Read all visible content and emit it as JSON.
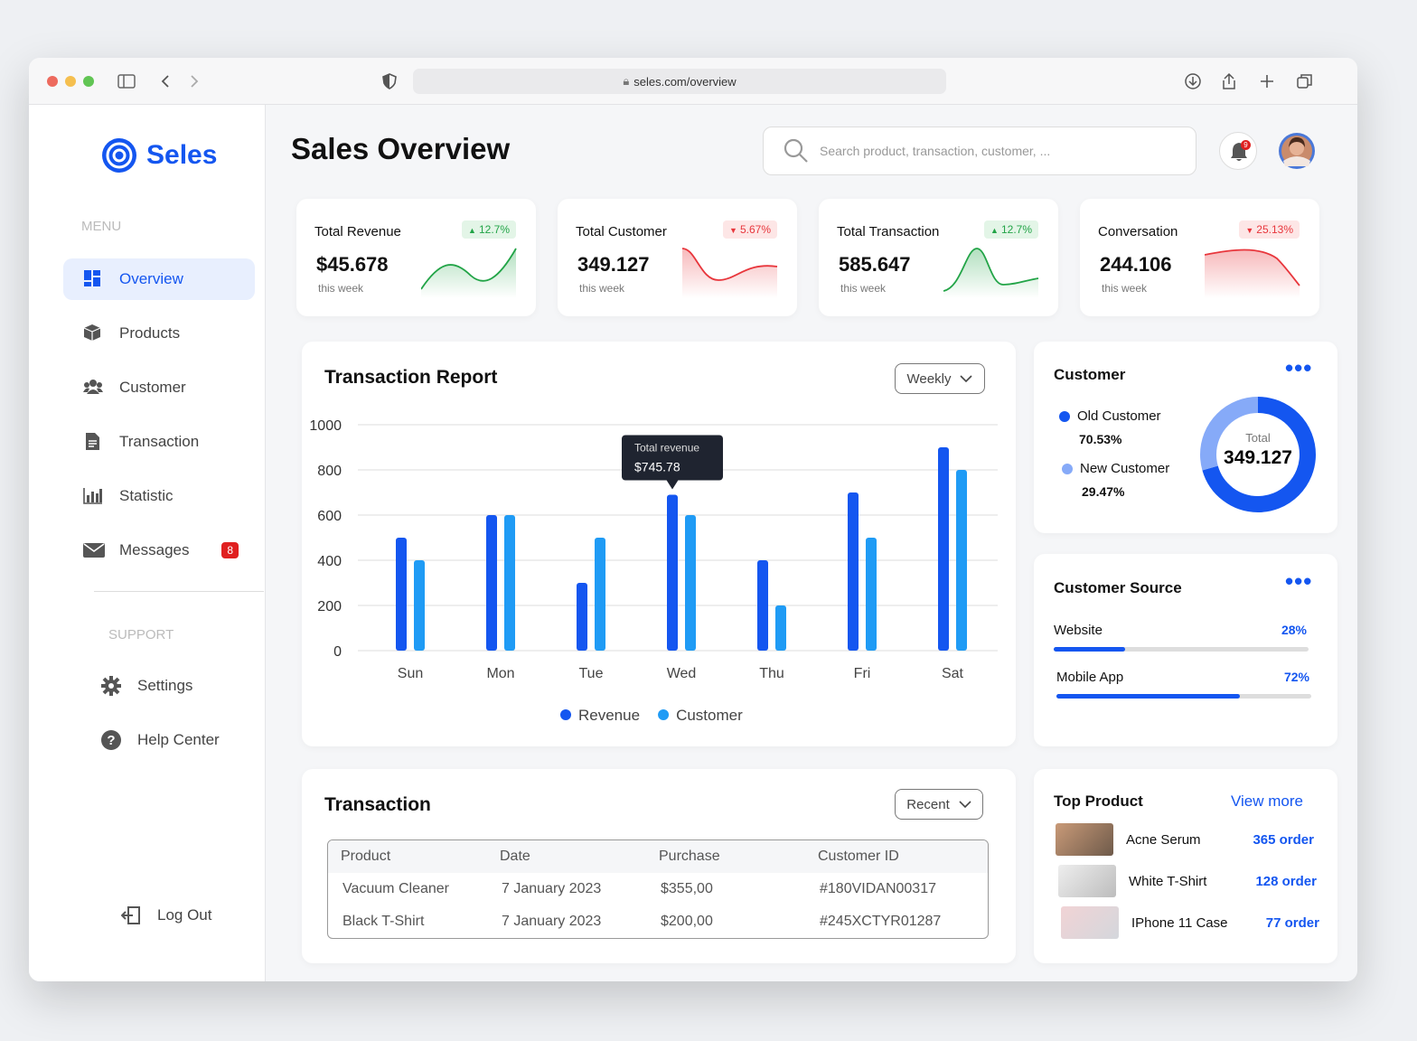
{
  "browser": {
    "url": "seles.com/overview"
  },
  "sidebar": {
    "brand": "Seles",
    "menu_heading": "MENU",
    "menu": [
      {
        "label": "Overview"
      },
      {
        "label": "Products"
      },
      {
        "label": "Customer"
      },
      {
        "label": "Transaction"
      },
      {
        "label": "Statistic"
      },
      {
        "label": "Messages",
        "badge": "8"
      }
    ],
    "support_heading": "SUPPORT",
    "support": [
      {
        "label": "Settings"
      },
      {
        "label": "Help Center"
      }
    ],
    "logout": "Log Out"
  },
  "header": {
    "title": "Sales Overview",
    "search_placeholder": "Search product, transaction, customer, ...",
    "notification_badge": "9"
  },
  "stats": [
    {
      "label": "Total Revenue",
      "value": "$45.678",
      "change": "12.7%",
      "trend": "up",
      "period": "this week"
    },
    {
      "label": "Total Customer",
      "value": "349.127",
      "change": "5.67%",
      "trend": "down",
      "period": "this week"
    },
    {
      "label": "Total Transaction",
      "value": "585.647",
      "change": "12.7%",
      "trend": "up",
      "period": "this week"
    },
    {
      "label": "Conversation",
      "value": "244.106",
      "change": "25.13%",
      "trend": "down",
      "period": "this week"
    }
  ],
  "chart_data": {
    "type": "bar",
    "title": "Transaction Report",
    "period_select": "Weekly",
    "categories": [
      "Sun",
      "Mon",
      "Tue",
      "Wed",
      "Thu",
      "Fri",
      "Sat"
    ],
    "series": [
      {
        "name": "Revenue",
        "color": "#1456f0",
        "values": [
          500,
          600,
          300,
          690,
          400,
          700,
          900
        ]
      },
      {
        "name": "Customer",
        "color": "#1f9bf5",
        "values": [
          400,
          600,
          500,
          600,
          200,
          500,
          800
        ]
      }
    ],
    "ylim": [
      0,
      1000
    ],
    "yticks": [
      0,
      200,
      400,
      600,
      800,
      1000
    ],
    "grid": true,
    "annotations": [
      {
        "title": "Total revenue",
        "text": "$745.78"
      }
    ]
  },
  "customer": {
    "title": "Customer",
    "segments": [
      {
        "name": "Old Customer",
        "value": 70.53,
        "value_label": "70.53%",
        "color": "#1456f0"
      },
      {
        "name": "New Customer",
        "value": 29.47,
        "value_label": "29.47%",
        "color": "#86aaf8"
      }
    ],
    "total_label": "Total",
    "total": "349.127"
  },
  "customer_source": {
    "title": "Customer Source",
    "items": [
      {
        "name": "Website",
        "value": 28,
        "value_label": "28%"
      },
      {
        "name": "Mobile App",
        "value": 72,
        "value_label": "72%"
      }
    ]
  },
  "transactions": {
    "title": "Transaction",
    "filter": "Recent",
    "columns": [
      "Product",
      "Date",
      "Purchase",
      "Customer ID"
    ],
    "rows": [
      [
        "Vacuum Cleaner",
        "7 January 2023",
        "$355,00",
        "#180VIDAN00317"
      ],
      [
        "Black T-Shirt",
        "7 January 2023",
        "$200,00",
        "#245XCTYR01287"
      ]
    ]
  },
  "top_product": {
    "title": "Top Product",
    "link": "View more",
    "items": [
      {
        "name": "Acne Serum",
        "orders": "365 order"
      },
      {
        "name": "White T-Shirt",
        "orders": "128 order"
      },
      {
        "name": "IPhone 11 Case",
        "orders": "77 order"
      }
    ]
  }
}
